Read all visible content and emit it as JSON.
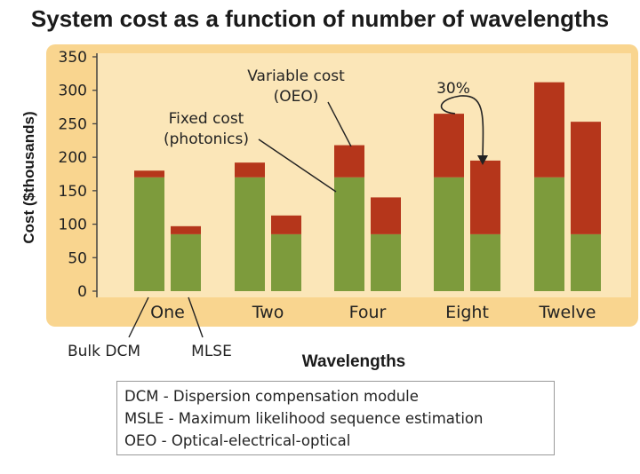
{
  "chart_data": {
    "type": "bar",
    "stacked": true,
    "title": "System cost as a function of number of wavelengths",
    "xlabel": "Wavelengths",
    "ylabel": "Cost ($thousands)",
    "ylim": [
      0,
      350
    ],
    "yticks": [
      0,
      50,
      100,
      150,
      200,
      250,
      300,
      350
    ],
    "grid": false,
    "categories": [
      "One",
      "Two",
      "Four",
      "Eight",
      "Twelve"
    ],
    "bar_labels": [
      "Bulk DCM",
      "MLSE"
    ],
    "series": [
      {
        "name": "Fixed cost (photonics)",
        "color": "#7d9b3c",
        "values": [
          [
            170,
            85
          ],
          [
            170,
            85
          ],
          [
            170,
            85
          ],
          [
            170,
            85
          ],
          [
            170,
            85
          ]
        ]
      },
      {
        "name": "Variable cost (OEO)",
        "color": "#b5361b",
        "values": [
          [
            10,
            12
          ],
          [
            22,
            28
          ],
          [
            48,
            55
          ],
          [
            95,
            110
          ],
          [
            142,
            168
          ]
        ]
      }
    ],
    "annotations": {
      "variable": "Variable cost\n(OEO)",
      "fixed": "Fixed cost\n(photonics)",
      "reduction": "30%",
      "bulk_dcm": "Bulk DCM",
      "mlse": "MLSE"
    }
  },
  "colors": {
    "panel_background": "#f9d58f",
    "panel_inner": "#fbe6b8",
    "fixed": "#7d9b3c",
    "variable": "#b5361b"
  },
  "legend": [
    "DCM - Dispersion compensation module",
    "MSLE - Maximum likelihood sequence estimation",
    "OEO - Optical-electrical-optical"
  ]
}
